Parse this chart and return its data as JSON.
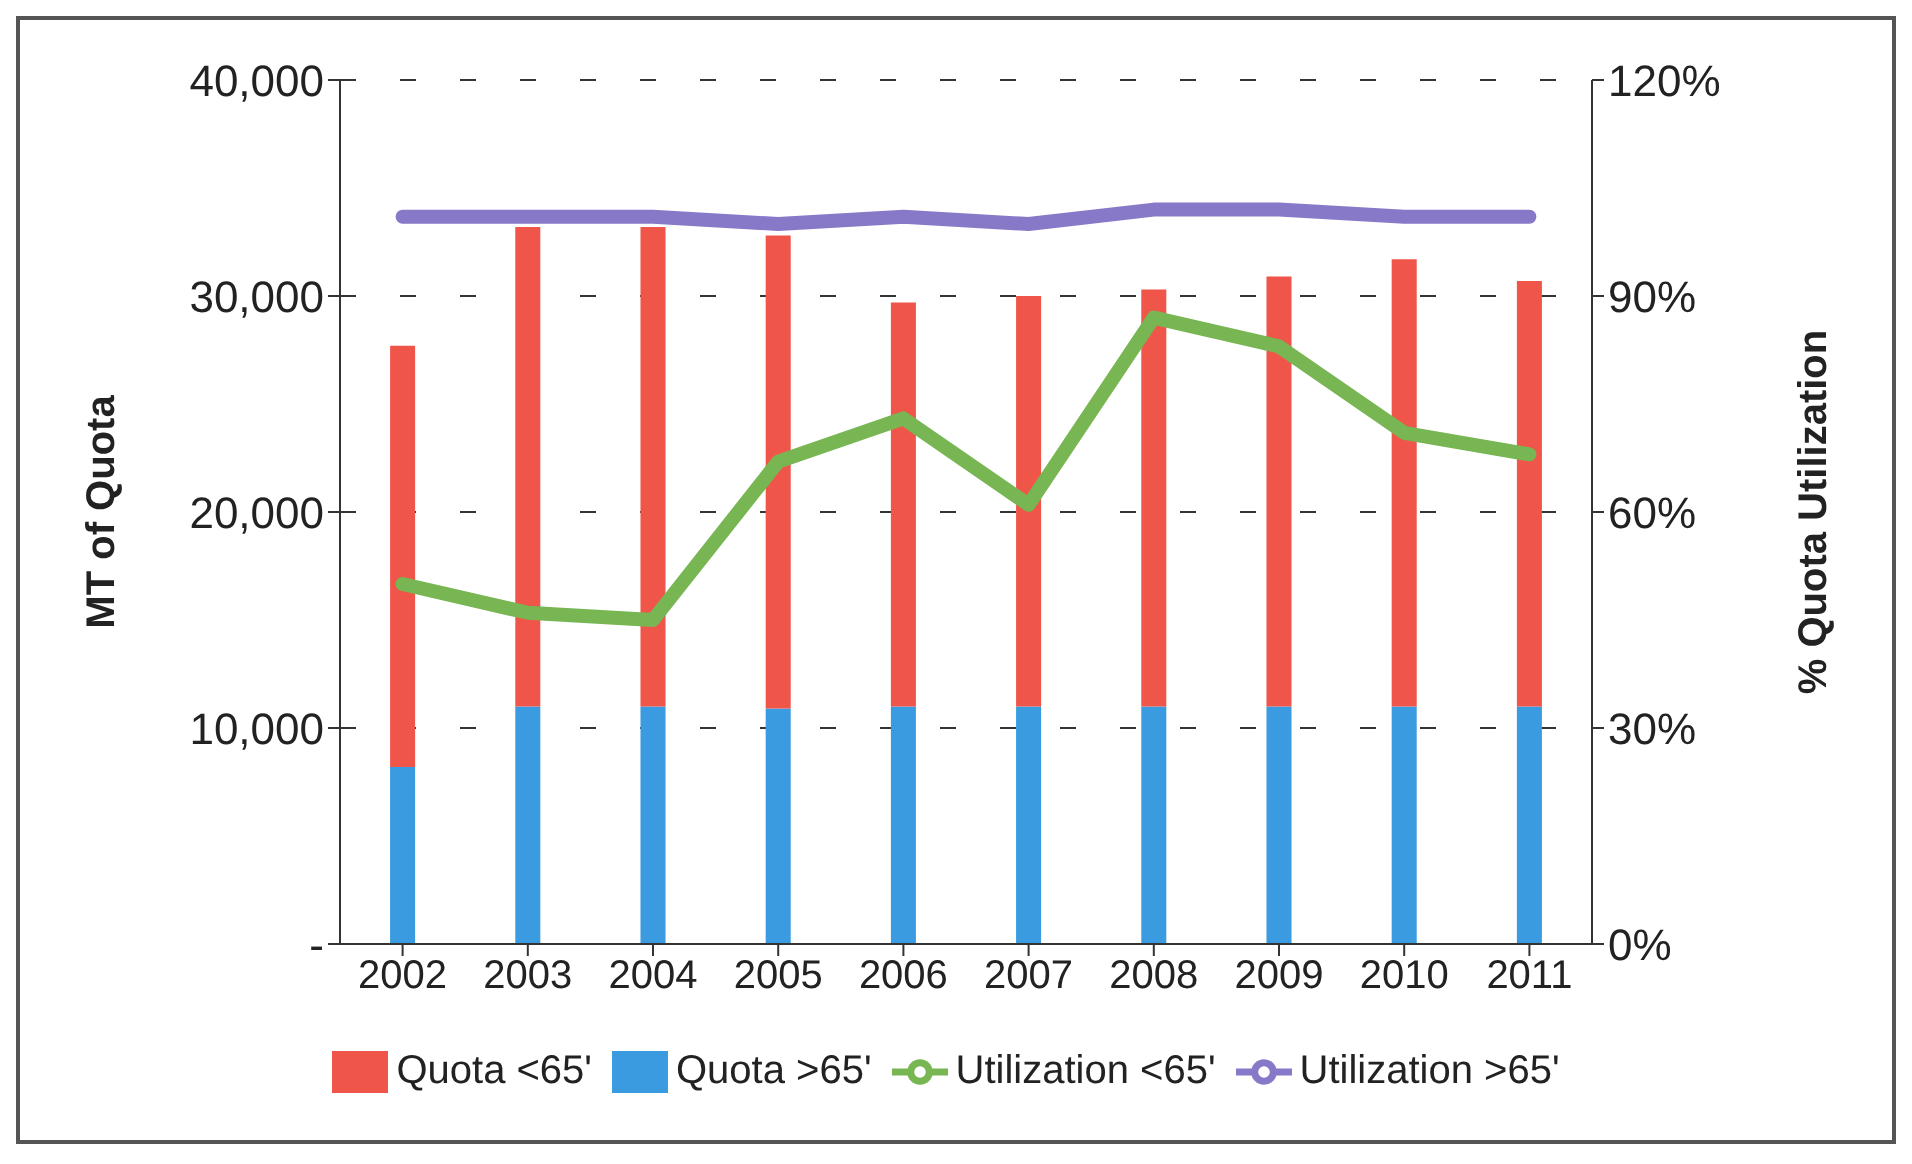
{
  "chart_data": {
    "type": "bar",
    "stacked": true,
    "xlabel": null,
    "ylabel": "MT of Quota",
    "y2label": "% Quota Utilization",
    "categories": [
      "2002",
      "2003",
      "2004",
      "2005",
      "2006",
      "2007",
      "2008",
      "2009",
      "2010",
      "2011"
    ],
    "series": [
      {
        "name": "Quota >65'",
        "color": "#3a9be0",
        "values": [
          8200,
          11000,
          11000,
          10900,
          11000,
          11000,
          11000,
          11000,
          11000,
          11000
        ]
      },
      {
        "name": "Quota <65'",
        "color": "#f0554a",
        "values": [
          19500,
          22200,
          22200,
          21900,
          18700,
          19000,
          19300,
          19900,
          20700,
          19700
        ]
      },
      {
        "name": "Utilization <65'",
        "type": "line",
        "axis": "y2",
        "color": "#77b652",
        "values": [
          50,
          46,
          45,
          67,
          73,
          61,
          87,
          83,
          71,
          68
        ]
      },
      {
        "name": "Utilization >65'",
        "type": "line",
        "axis": "y2",
        "color": "#8878c8",
        "values": [
          101,
          101,
          101,
          100,
          101,
          100,
          102,
          102,
          101,
          101
        ]
      }
    ],
    "ylim": [
      0,
      40000
    ],
    "yticks": [
      {
        "value": 0,
        "label": "-"
      },
      {
        "value": 10000,
        "label": "10,000"
      },
      {
        "value": 20000,
        "label": "20,000"
      },
      {
        "value": 30000,
        "label": "30,000"
      },
      {
        "value": 40000,
        "label": "40,000"
      }
    ],
    "y2lim": [
      0,
      120
    ],
    "y2ticks": [
      {
        "value": 0,
        "label": "0%"
      },
      {
        "value": 30,
        "label": "30%"
      },
      {
        "value": 60,
        "label": "60%"
      },
      {
        "value": 90,
        "label": "90%"
      },
      {
        "value": 120,
        "label": "120%"
      }
    ],
    "grid": "y",
    "line_style": "solid",
    "legend": "bottom"
  }
}
